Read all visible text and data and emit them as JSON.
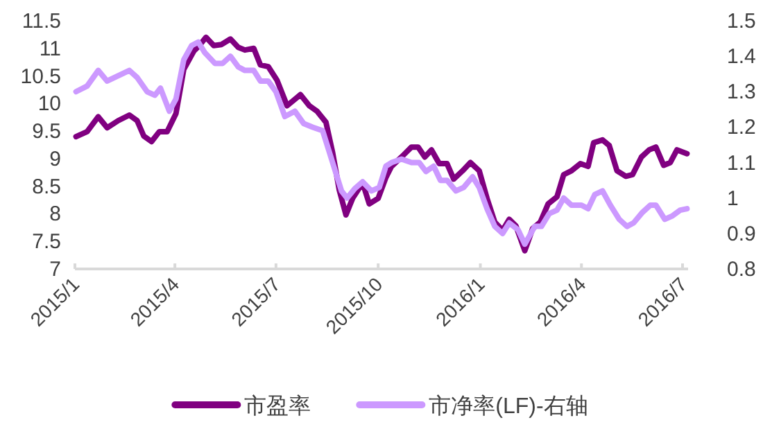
{
  "chart_data": {
    "type": "line",
    "legend": "bottom",
    "grid": false,
    "marker": "none",
    "line_style": "solid",
    "xlim": [
      "2015-01-01",
      "2016-07-06"
    ],
    "xticks": [
      {
        "value": "2015-01-01",
        "label": "2015/1"
      },
      {
        "value": "2015-04-01",
        "label": "2015/4"
      },
      {
        "value": "2015-07-01",
        "label": "2015/7"
      },
      {
        "value": "2015-10-01",
        "label": "2015/10"
      },
      {
        "value": "2016-01-01",
        "label": "2016/1"
      },
      {
        "value": "2016-04-01",
        "label": "2016/4"
      },
      {
        "value": "2016-07-01",
        "label": "2016/7"
      }
    ],
    "ylim": [
      7,
      11.5
    ],
    "yticks": [
      7,
      7.5,
      8,
      8.5,
      9,
      9.5,
      10,
      10.5,
      11,
      11.5
    ],
    "y2lim": [
      0.8,
      1.5
    ],
    "y2ticks": [
      0.8,
      0.9,
      1,
      1.1,
      1.2,
      1.3,
      1.4,
      1.5
    ],
    "series": [
      {
        "name": "市盈率",
        "color": "#800080",
        "x": [
          "2015-01-02",
          "2015-01-12",
          "2015-01-22",
          "2015-01-30",
          "2015-02-09",
          "2015-02-19",
          "2015-02-26",
          "2015-03-04",
          "2015-03-11",
          "2015-03-18",
          "2015-03-25",
          "2015-04-02",
          "2015-04-09",
          "2015-04-18",
          "2015-04-23",
          "2015-04-29",
          "2015-05-06",
          "2015-05-13",
          "2015-05-21",
          "2015-05-28",
          "2015-06-03",
          "2015-06-11",
          "2015-06-17",
          "2015-06-24",
          "2015-07-02",
          "2015-07-11",
          "2015-07-23",
          "2015-07-31",
          "2015-08-07",
          "2015-08-15",
          "2015-08-21",
          "2015-08-27",
          "2015-09-02",
          "2015-09-08",
          "2015-09-17",
          "2015-09-23",
          "2015-10-01",
          "2015-10-08",
          "2015-10-13",
          "2015-10-22",
          "2015-10-31",
          "2015-11-06",
          "2015-11-12",
          "2015-11-18",
          "2015-11-25",
          "2015-12-02",
          "2015-12-08",
          "2015-12-16",
          "2015-12-23",
          "2015-12-31",
          "2016-01-07",
          "2016-01-14",
          "2016-01-21",
          "2016-01-27",
          "2016-02-02",
          "2016-02-10",
          "2016-02-17",
          "2016-02-24",
          "2016-03-02",
          "2016-03-10",
          "2016-03-16",
          "2016-03-23",
          "2016-03-31",
          "2016-04-07",
          "2016-04-12",
          "2016-04-20",
          "2016-04-26",
          "2016-05-03",
          "2016-05-11",
          "2016-05-17",
          "2016-05-25",
          "2016-06-01",
          "2016-06-07",
          "2016-06-14",
          "2016-06-20",
          "2016-06-26",
          "2016-07-05"
        ],
        "values": [
          9.4,
          9.49,
          9.76,
          9.56,
          9.69,
          9.79,
          9.69,
          9.41,
          9.31,
          9.49,
          9.49,
          9.82,
          10.62,
          10.95,
          11.05,
          11.2,
          11.05,
          11.07,
          11.17,
          11.02,
          10.97,
          11.0,
          10.7,
          10.67,
          10.42,
          9.96,
          10.16,
          9.96,
          9.86,
          9.66,
          9.11,
          8.43,
          7.98,
          8.28,
          8.56,
          8.18,
          8.28,
          8.66,
          8.86,
          9.03,
          9.21,
          9.21,
          9.03,
          9.16,
          8.91,
          8.91,
          8.63,
          8.78,
          8.93,
          8.78,
          8.28,
          7.85,
          7.7,
          7.9,
          7.78,
          7.33,
          7.73,
          7.85,
          8.18,
          8.31,
          8.71,
          8.78,
          8.91,
          8.86,
          9.29,
          9.34,
          9.24,
          8.78,
          8.68,
          8.71,
          9.03,
          9.16,
          9.21,
          8.88,
          8.93,
          9.16,
          9.09
        ]
      },
      {
        "name": "市净率(LF)-右轴",
        "color": "#cc99ff",
        "axis": "y2",
        "x": [
          "2015-01-02",
          "2015-01-12",
          "2015-01-22",
          "2015-01-30",
          "2015-02-19",
          "2015-02-26",
          "2015-03-07",
          "2015-03-14",
          "2015-03-19",
          "2015-03-27",
          "2015-04-02",
          "2015-04-09",
          "2015-04-16",
          "2015-04-22",
          "2015-04-28",
          "2015-05-07",
          "2015-05-14",
          "2015-05-21",
          "2015-05-28",
          "2015-06-03",
          "2015-06-11",
          "2015-06-17",
          "2015-06-24",
          "2015-07-01",
          "2015-07-09",
          "2015-07-18",
          "2015-07-26",
          "2015-08-03",
          "2015-08-12",
          "2015-08-21",
          "2015-08-29",
          "2015-09-03",
          "2015-09-10",
          "2015-09-17",
          "2015-09-25",
          "2015-10-02",
          "2015-10-08",
          "2015-10-13",
          "2015-10-22",
          "2015-10-31",
          "2015-11-07",
          "2015-11-13",
          "2015-11-20",
          "2015-11-26",
          "2015-12-02",
          "2015-12-10",
          "2015-12-17",
          "2015-12-25",
          "2015-12-31",
          "2016-01-07",
          "2016-01-14",
          "2016-01-21",
          "2016-01-27",
          "2016-02-04",
          "2016-02-10",
          "2016-02-19",
          "2016-02-25",
          "2016-03-03",
          "2016-03-10",
          "2016-03-16",
          "2016-03-23",
          "2016-04-01",
          "2016-04-07",
          "2016-04-13",
          "2016-04-20",
          "2016-04-27",
          "2016-05-05",
          "2016-05-12",
          "2016-05-18",
          "2016-05-26",
          "2016-06-02",
          "2016-06-07",
          "2016-06-15",
          "2016-06-22",
          "2016-06-29",
          "2016-07-05"
        ],
        "values": [
          1.3,
          1.316,
          1.36,
          1.33,
          1.36,
          1.34,
          1.3,
          1.29,
          1.31,
          1.245,
          1.28,
          1.39,
          1.43,
          1.44,
          1.41,
          1.38,
          1.38,
          1.4,
          1.37,
          1.36,
          1.36,
          1.33,
          1.33,
          1.3,
          1.23,
          1.245,
          1.21,
          1.2,
          1.19,
          1.1,
          1.02,
          1.0,
          1.027,
          1.046,
          1.02,
          1.03,
          1.09,
          1.1,
          1.11,
          1.1,
          1.1,
          1.075,
          1.09,
          1.05,
          1.05,
          1.02,
          1.03,
          1.06,
          1.03,
          0.97,
          0.92,
          0.9,
          0.93,
          0.91,
          0.87,
          0.92,
          0.92,
          0.956,
          0.966,
          1.0,
          0.98,
          0.98,
          0.97,
          1.01,
          1.02,
          0.98,
          0.94,
          0.92,
          0.93,
          0.96,
          0.98,
          0.98,
          0.94,
          0.95,
          0.966,
          0.97
        ]
      }
    ]
  }
}
